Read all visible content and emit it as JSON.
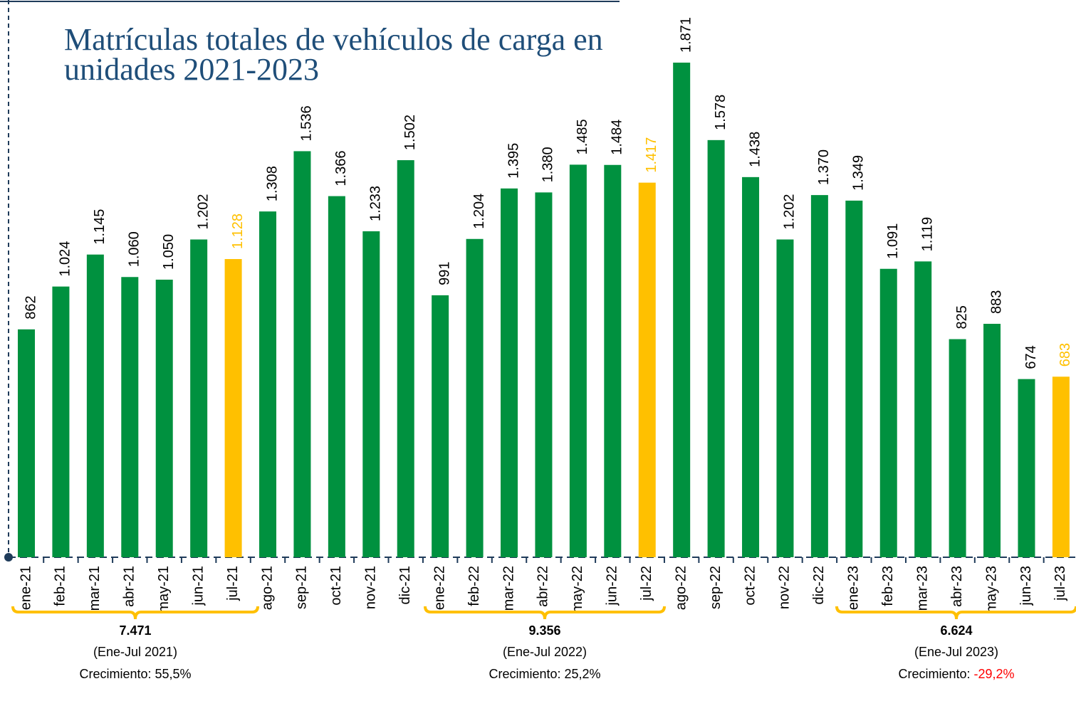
{
  "chart_data": {
    "type": "bar",
    "title": [
      "Matrículas totales de vehículos de carga en",
      "unidades 2021-2023"
    ],
    "categories": [
      "ene-21",
      "feb-21",
      "mar-21",
      "abr-21",
      "may-21",
      "jun-21",
      "jul-21",
      "ago-21",
      "sep-21",
      "oct-21",
      "nov-21",
      "dic-21",
      "ene-22",
      "feb-22",
      "mar-22",
      "abr-22",
      "may-22",
      "jun-22",
      "jul-22",
      "ago-22",
      "sep-22",
      "oct-22",
      "nov-22",
      "dic-22",
      "ene-23",
      "feb-23",
      "mar-23",
      "abr-23",
      "may-23",
      "jun-23",
      "jul-23"
    ],
    "values": [
      862,
      1024,
      1145,
      1060,
      1050,
      1202,
      1128,
      1308,
      1536,
      1366,
      1233,
      1502,
      991,
      1204,
      1395,
      1380,
      1485,
      1484,
      1417,
      1871,
      1578,
      1438,
      1202,
      1370,
      1349,
      1091,
      1119,
      825,
      883,
      674,
      683
    ],
    "value_labels": [
      "862",
      "1.024",
      "1.145",
      "1.060",
      "1.050",
      "1.202",
      "1.128",
      "1.308",
      "1.536",
      "1.366",
      "1.233",
      "1.502",
      "991",
      "1.204",
      "1.395",
      "1.380",
      "1.485",
      "1.484",
      "1.417",
      "1.871",
      "1.578",
      "1.438",
      "1.202",
      "1.370",
      "1.349",
      "1.091",
      "1.119",
      "825",
      "883",
      "674",
      "683"
    ],
    "colors": [
      "#00913f",
      "#00913f",
      "#00913f",
      "#00913f",
      "#00913f",
      "#00913f",
      "#ffc000",
      "#00913f",
      "#00913f",
      "#00913f",
      "#00913f",
      "#00913f",
      "#00913f",
      "#00913f",
      "#00913f",
      "#00913f",
      "#00913f",
      "#00913f",
      "#ffc000",
      "#00913f",
      "#00913f",
      "#00913f",
      "#00913f",
      "#00913f",
      "#00913f",
      "#00913f",
      "#00913f",
      "#00913f",
      "#00913f",
      "#00913f",
      "#ffc000"
    ],
    "ylim": [
      0,
      1871
    ],
    "annotations": [
      {
        "total": "7.471",
        "period": "(Ene-Jul 2021)",
        "growth_label": "Crecimiento:",
        "growth_value": "55,5%",
        "growth_color": "#000000"
      },
      {
        "total": "9.356",
        "period": "(Ene-Jul 2022)",
        "growth_label": "Crecimiento:",
        "growth_value": "25,2%",
        "growth_color": "#000000"
      },
      {
        "total": "6.624",
        "period": "(Ene-Jul 2023)",
        "growth_label": "Crecimiento:",
        "growth_value": "-29,2%",
        "growth_color": "#ff0000"
      }
    ]
  }
}
